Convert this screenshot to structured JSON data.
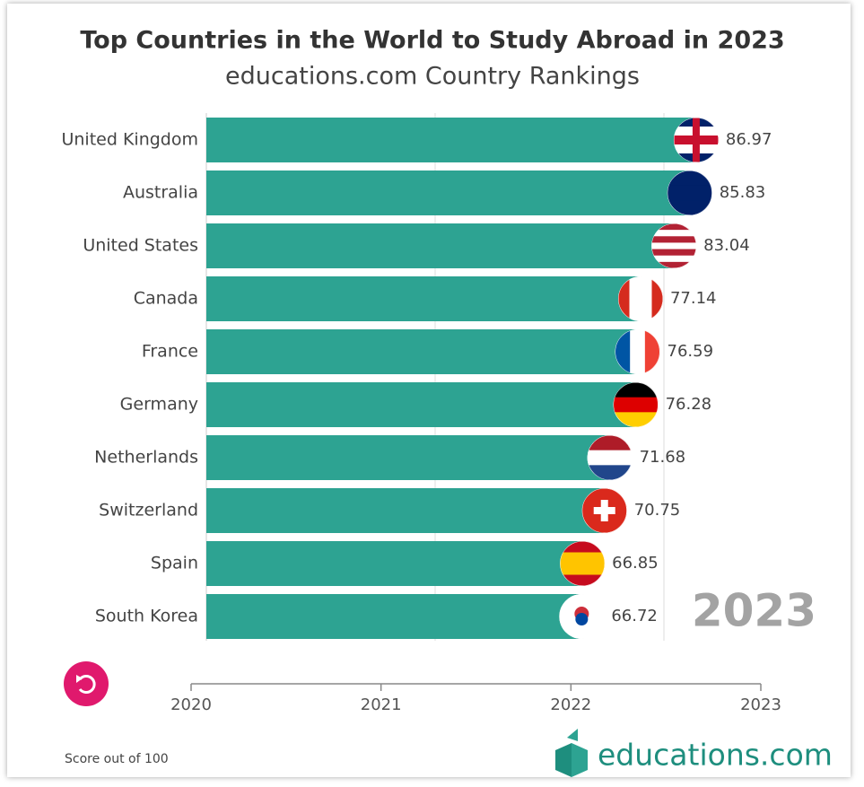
{
  "chart_data": {
    "type": "bar",
    "orientation": "horizontal",
    "title": "Top Countries in the World to Study Abroad in 2023",
    "subtitle": "educations.com Country Rankings",
    "categories": [
      "United Kingdom",
      "Australia",
      "United States",
      "Canada",
      "France",
      "Germany",
      "Netherlands",
      "Switzerland",
      "Spain",
      "South Korea"
    ],
    "values": [
      86.97,
      85.83,
      83.04,
      77.14,
      76.59,
      76.28,
      71.68,
      70.75,
      66.85,
      66.72
    ],
    "color": "#2da392",
    "xlim": [
      0,
      90
    ],
    "year_label": "2023",
    "timeline": {
      "ticks": [
        2020,
        2021,
        2022,
        2023
      ]
    },
    "footnote": "Score out of 100",
    "logo": "educations.com"
  }
}
